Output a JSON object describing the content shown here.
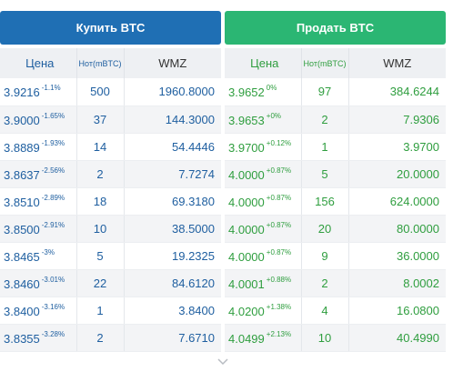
{
  "buy": {
    "button_label": "Купить BTC",
    "headers": {
      "price": "Цена",
      "amount": "Нот(mBTC)",
      "wmz": "WMZ"
    },
    "rows": [
      {
        "price": "3.9216",
        "change": "-1.1%",
        "amount": "500",
        "wmz": "1960.8000"
      },
      {
        "price": "3.9000",
        "change": "-1.65%",
        "amount": "37",
        "wmz": "144.3000"
      },
      {
        "price": "3.8889",
        "change": "-1.93%",
        "amount": "14",
        "wmz": "54.4446"
      },
      {
        "price": "3.8637",
        "change": "-2.56%",
        "amount": "2",
        "wmz": "7.7274"
      },
      {
        "price": "3.8510",
        "change": "-2.89%",
        "amount": "18",
        "wmz": "69.3180"
      },
      {
        "price": "3.8500",
        "change": "-2.91%",
        "amount": "10",
        "wmz": "38.5000"
      },
      {
        "price": "3.8465",
        "change": "-3%",
        "amount": "5",
        "wmz": "19.2325"
      },
      {
        "price": "3.8460",
        "change": "-3.01%",
        "amount": "22",
        "wmz": "84.6120"
      },
      {
        "price": "3.8400",
        "change": "-3.16%",
        "amount": "1",
        "wmz": "3.8400"
      },
      {
        "price": "3.8355",
        "change": "-3.28%",
        "amount": "2",
        "wmz": "7.6710"
      }
    ]
  },
  "sell": {
    "button_label": "Продать BTC",
    "headers": {
      "price": "Цена",
      "amount": "Нот(mBTC)",
      "wmz": "WMZ"
    },
    "rows": [
      {
        "price": "3.9652",
        "change": "0%",
        "amount": "97",
        "wmz": "384.6244"
      },
      {
        "price": "3.9653",
        "change": "+0%",
        "amount": "2",
        "wmz": "7.9306"
      },
      {
        "price": "3.9700",
        "change": "+0.12%",
        "amount": "1",
        "wmz": "3.9700"
      },
      {
        "price": "4.0000",
        "change": "+0.87%",
        "amount": "5",
        "wmz": "20.0000"
      },
      {
        "price": "4.0000",
        "change": "+0.87%",
        "amount": "156",
        "wmz": "624.0000"
      },
      {
        "price": "4.0000",
        "change": "+0.87%",
        "amount": "20",
        "wmz": "80.0000"
      },
      {
        "price": "4.0000",
        "change": "+0.87%",
        "amount": "9",
        "wmz": "36.0000"
      },
      {
        "price": "4.0001",
        "change": "+0.88%",
        "amount": "2",
        "wmz": "8.0002"
      },
      {
        "price": "4.0200",
        "change": "+1.38%",
        "amount": "4",
        "wmz": "16.0800"
      },
      {
        "price": "4.0499",
        "change": "+2.13%",
        "amount": "10",
        "wmz": "40.4990"
      }
    ]
  },
  "colors": {
    "buy_button": "#1f6fb4",
    "sell_button": "#2bb673",
    "buy_text": "#1f5fa0",
    "sell_text": "#2f9e3f"
  },
  "footer": {
    "more_icon": "chevron-down-icon"
  }
}
